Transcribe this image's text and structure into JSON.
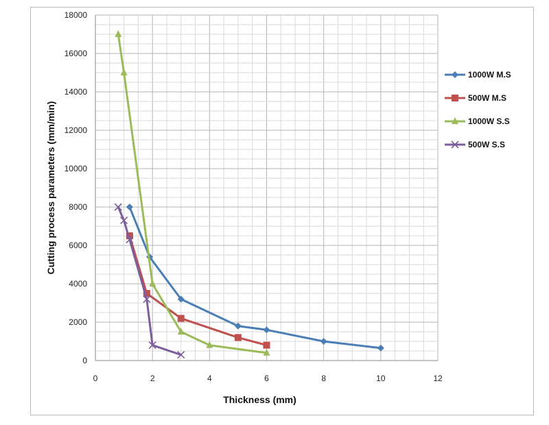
{
  "chart_data": {
    "type": "line",
    "title": "",
    "xlabel": "Thickness (mm)",
    "ylabel": "Cutting process parameters (mm/min)",
    "xlim": [
      0,
      12
    ],
    "ylim": [
      0,
      18000
    ],
    "xticks": [
      0,
      2,
      4,
      6,
      8,
      10,
      12
    ],
    "yticks": [
      0,
      2000,
      4000,
      6000,
      8000,
      10000,
      12000,
      14000,
      16000,
      18000
    ],
    "grid": true,
    "legend_position": "right",
    "series": [
      {
        "name": "1000W M.S",
        "color": "#4a7eb5",
        "marker": "diamond",
        "x": [
          1.2,
          1.9,
          3,
          5,
          6,
          8,
          10
        ],
        "y": [
          8000,
          5400,
          3200,
          1800,
          1600,
          1000,
          650
        ]
      },
      {
        "name": "500W M.S",
        "color": "#c0504d",
        "marker": "square",
        "x": [
          1.2,
          1.8,
          3,
          5,
          6
        ],
        "y": [
          6500,
          3500,
          2200,
          1200,
          800
        ]
      },
      {
        "name": "1000W S.S",
        "color": "#9bbb59",
        "marker": "triangle",
        "x": [
          0.8,
          1,
          2,
          3,
          4,
          6
        ],
        "y": [
          17000,
          15000,
          4000,
          1500,
          800,
          400
        ]
      },
      {
        "name": "500W S.S",
        "color": "#7c5e9c",
        "marker": "x",
        "x": [
          0.8,
          1,
          1.2,
          1.8,
          2,
          3
        ],
        "y": [
          8000,
          7300,
          6300,
          3200,
          800,
          300
        ]
      }
    ]
  }
}
